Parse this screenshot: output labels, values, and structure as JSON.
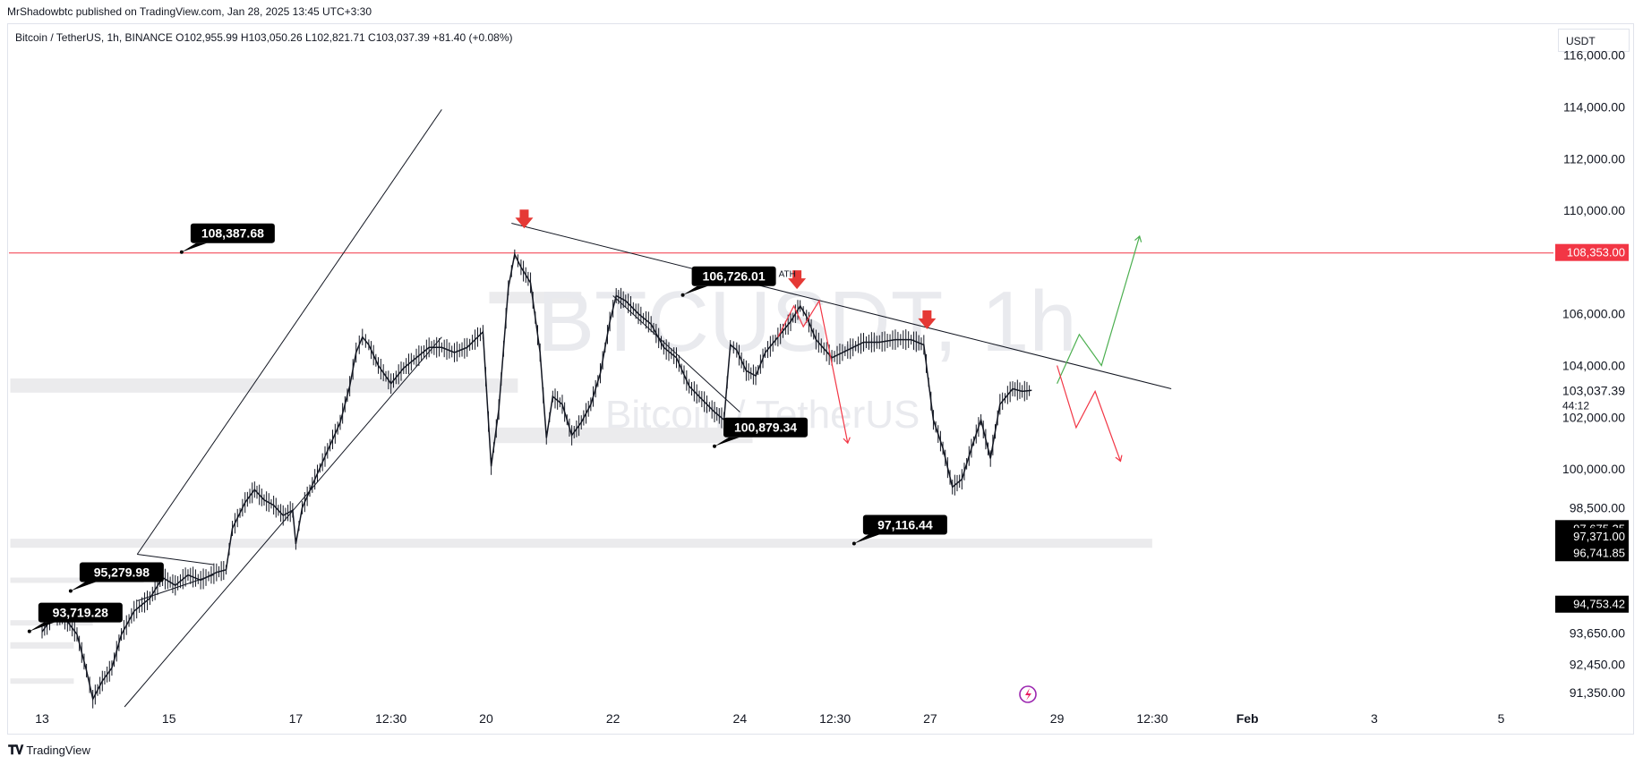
{
  "header": {
    "published_by": "MrShadowbtc published on TradingView.com, Jan 28, 2025 13:45 UTC+3:30"
  },
  "symbol": {
    "info": "Bitcoin / TetherUS, 1h, BINANCE  O102,955.99  H103,050.26  L102,821.71  C103,037.39  +81.40 (+0.08%)"
  },
  "currency": "USDT",
  "watermark": {
    "main": "BTCUSDT, 1h",
    "sub": "Bitcoin / TetherUS"
  },
  "footer": {
    "brand": "TradingView",
    "logo_icon": "tradingview-logo-icon"
  },
  "chart_data": {
    "type": "line",
    "title": "",
    "xlabel": "",
    "ylabel": "",
    "ylim": [
      90800,
      117200
    ],
    "x_ticks": [
      {
        "label": "13",
        "t": 13.0
      },
      {
        "label": "15",
        "t": 15.0
      },
      {
        "label": "17",
        "t": 17.0
      },
      {
        "label": "12:30",
        "t": 18.5
      },
      {
        "label": "20",
        "t": 20.0
      },
      {
        "label": "22",
        "t": 22.0
      },
      {
        "label": "24",
        "t": 24.0
      },
      {
        "label": "12:30",
        "t": 25.5
      },
      {
        "label": "27",
        "t": 27.0
      },
      {
        "label": "29",
        "t": 29.0
      },
      {
        "label": "12:30",
        "t": 30.5
      },
      {
        "label": "Feb",
        "t": 32.0
      },
      {
        "label": "3",
        "t": 34.0
      },
      {
        "label": "5",
        "t": 36.0
      }
    ],
    "y_ticks": [
      {
        "label": "116,000.00",
        "v": 116000
      },
      {
        "label": "114,000.00",
        "v": 114000
      },
      {
        "label": "112,000.00",
        "v": 112000
      },
      {
        "label": "110,000.00",
        "v": 110000
      },
      {
        "label": "106,000.00",
        "v": 106000
      },
      {
        "label": "104,000.00",
        "v": 104000
      },
      {
        "label": "102,000.00",
        "v": 102000
      },
      {
        "label": "100,000.00",
        "v": 100000
      },
      {
        "label": "98,500.00",
        "v": 98500
      },
      {
        "label": "93,650.00",
        "v": 93650
      },
      {
        "label": "92,450.00",
        "v": 92450
      },
      {
        "label": "91,350.00",
        "v": 91350
      }
    ],
    "price_badges": [
      {
        "label": "108,353.00",
        "v": 108353,
        "color": "#f23645"
      },
      {
        "label": "103,037.39",
        "v": 103037.39,
        "color": "none",
        "sub": "44:12"
      },
      {
        "label": "97,675.25",
        "v": 97675.25,
        "color": "#000000"
      },
      {
        "label": "97,371.00",
        "v": 97371,
        "color": "#000000"
      },
      {
        "label": "96,741.85",
        "v": 96741.85,
        "color": "#000000"
      },
      {
        "label": "94,753.42",
        "v": 94753.42,
        "color": "#000000"
      }
    ],
    "series": [
      {
        "kind": "price",
        "color": "#131722",
        "points": [
          [
            13.0,
            93700
          ],
          [
            13.2,
            94400
          ],
          [
            13.4,
            94100
          ],
          [
            13.55,
            93600
          ],
          [
            13.7,
            92200
          ],
          [
            13.8,
            91100
          ],
          [
            13.95,
            91800
          ],
          [
            14.1,
            92300
          ],
          [
            14.25,
            93600
          ],
          [
            14.45,
            94500
          ],
          [
            14.7,
            95000
          ],
          [
            14.9,
            95800
          ],
          [
            15.1,
            95500
          ],
          [
            15.3,
            95900
          ],
          [
            15.5,
            95700
          ],
          [
            15.75,
            96000
          ],
          [
            15.9,
            96100
          ],
          [
            16.0,
            97700
          ],
          [
            16.2,
            98700
          ],
          [
            16.35,
            99200
          ],
          [
            16.5,
            98800
          ],
          [
            16.65,
            98600
          ],
          [
            16.8,
            98200
          ],
          [
            16.95,
            98400
          ],
          [
            17.0,
            97100
          ],
          [
            17.1,
            98500
          ],
          [
            17.3,
            99600
          ],
          [
            17.5,
            100700
          ],
          [
            17.7,
            101800
          ],
          [
            17.85,
            103200
          ],
          [
            17.95,
            104500
          ],
          [
            18.05,
            105100
          ],
          [
            18.15,
            104800
          ],
          [
            18.3,
            104000
          ],
          [
            18.5,
            103300
          ],
          [
            18.7,
            103900
          ],
          [
            18.9,
            104300
          ],
          [
            19.1,
            104700
          ],
          [
            19.3,
            104700
          ],
          [
            19.5,
            104500
          ],
          [
            19.7,
            104700
          ],
          [
            19.95,
            105300
          ],
          [
            20.08,
            100100
          ],
          [
            20.2,
            102300
          ],
          [
            20.35,
            107000
          ],
          [
            20.45,
            108300
          ],
          [
            20.55,
            107800
          ],
          [
            20.7,
            107200
          ],
          [
            20.85,
            104500
          ],
          [
            20.95,
            101200
          ],
          [
            21.05,
            102800
          ],
          [
            21.2,
            102500
          ],
          [
            21.35,
            101300
          ],
          [
            21.5,
            101800
          ],
          [
            21.65,
            102500
          ],
          [
            21.8,
            103700
          ],
          [
            21.95,
            105700
          ],
          [
            22.05,
            106700
          ],
          [
            22.2,
            106500
          ],
          [
            22.4,
            106000
          ],
          [
            22.6,
            105600
          ],
          [
            22.8,
            104700
          ],
          [
            23.0,
            104300
          ],
          [
            23.2,
            103200
          ],
          [
            23.4,
            102700
          ],
          [
            23.6,
            102200
          ],
          [
            23.75,
            101900
          ],
          [
            23.85,
            104800
          ],
          [
            23.95,
            104600
          ],
          [
            24.1,
            103800
          ],
          [
            24.25,
            103600
          ],
          [
            24.4,
            104500
          ],
          [
            24.6,
            105100
          ],
          [
            24.8,
            105700
          ],
          [
            24.95,
            106300
          ],
          [
            25.05,
            105900
          ],
          [
            25.2,
            105000
          ],
          [
            25.45,
            104300
          ],
          [
            25.7,
            104600
          ],
          [
            25.95,
            104900
          ],
          [
            26.2,
            104900
          ],
          [
            26.45,
            105000
          ],
          [
            26.7,
            105000
          ],
          [
            26.9,
            104800
          ],
          [
            27.05,
            101900
          ],
          [
            27.2,
            100800
          ],
          [
            27.35,
            99300
          ],
          [
            27.5,
            99600
          ],
          [
            27.65,
            100800
          ],
          [
            27.8,
            101900
          ],
          [
            27.95,
            100400
          ],
          [
            28.1,
            102500
          ],
          [
            28.3,
            103100
          ],
          [
            28.45,
            103000
          ],
          [
            28.6,
            103037
          ]
        ]
      }
    ],
    "annotations": {
      "callouts": [
        {
          "label": "108,387.68",
          "t": 15.2,
          "v": 108387.68
        },
        {
          "label": "106,726.01",
          "t": 23.1,
          "v": 106726.01,
          "note": "ATH"
        },
        {
          "label": "100,879.34",
          "t": 23.6,
          "v": 100879.34
        },
        {
          "label": "97,116.44",
          "t": 25.8,
          "v": 97116.44
        },
        {
          "label": "95,279.98",
          "t": 13.45,
          "v": 95279.98
        },
        {
          "label": "93,719.28",
          "t": 12.8,
          "v": 93719.28
        }
      ],
      "horizontal_line": {
        "v": 108353,
        "color": "#f23645"
      },
      "down_arrows": [
        {
          "t": 20.6,
          "v": 109650
        },
        {
          "t": 24.9,
          "v": 107300
        },
        {
          "t": 26.95,
          "v": 105750
        }
      ],
      "trend_lines": [
        {
          "from": [
            14.5,
            96700
          ],
          "to": [
            19.3,
            113900
          ]
        },
        {
          "from": [
            14.3,
            90800
          ],
          "to": [
            19.3,
            105100
          ]
        },
        {
          "from": [
            20.4,
            109500
          ],
          "to": [
            30.8,
            103100
          ]
        },
        {
          "from": [
            22.0,
            106700
          ],
          "to": [
            24.0,
            102200
          ]
        },
        {
          "from": [
            14.5,
            96700
          ],
          "to": [
            15.7,
            96300
          ]
        },
        {
          "from": [
            14.5,
            94900
          ],
          "to": [
            15.7,
            95900
          ]
        }
      ],
      "bullish_path": [
        [
          29.0,
          103300
        ],
        [
          29.35,
          105200
        ],
        [
          29.7,
          104000
        ],
        [
          30.3,
          109000
        ]
      ],
      "bearish_path": [
        [
          29.0,
          104000
        ],
        [
          29.3,
          101600
        ],
        [
          29.6,
          103000
        ],
        [
          30.0,
          100300
        ]
      ],
      "earlier_red_path": [
        [
          24.6,
          105100
        ],
        [
          24.85,
          106300
        ],
        [
          25.0,
          105500
        ],
        [
          25.25,
          106500
        ],
        [
          25.4,
          104700
        ],
        [
          25.7,
          101000
        ]
      ],
      "zones": [
        {
          "t1": 12.5,
          "t2": 20.5,
          "v1": 103500,
          "v2": 102950
        },
        {
          "t1": 20.05,
          "t2": 24.2,
          "v1": 101600,
          "v2": 101000
        },
        {
          "t1": 20.05,
          "t2": 21.5,
          "v1": 106850,
          "v2": 106400
        },
        {
          "t1": 12.5,
          "t2": 30.5,
          "v1": 97300,
          "v2": 96950
        },
        {
          "t1": 12.5,
          "t2": 14.6,
          "v1": 95800,
          "v2": 95600
        },
        {
          "t1": 12.5,
          "t2": 13.8,
          "v1": 94150,
          "v2": 93950
        },
        {
          "t1": 12.5,
          "t2": 13.5,
          "v1": 93300,
          "v2": 93050
        },
        {
          "t1": 12.5,
          "t2": 13.5,
          "v1": 91900,
          "v2": 91700
        }
      ]
    }
  }
}
